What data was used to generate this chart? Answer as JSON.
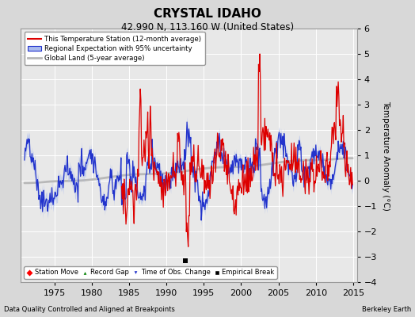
{
  "title": "CRYSTAL IDAHO",
  "subtitle": "42.990 N, 113.160 W (United States)",
  "ylabel": "Temperature Anomaly (°C)",
  "footer_left": "Data Quality Controlled and Aligned at Breakpoints",
  "footer_right": "Berkeley Earth",
  "xlim": [
    1970.5,
    2015.5
  ],
  "ylim": [
    -4,
    6
  ],
  "yticks": [
    -4,
    -3,
    -2,
    -1,
    0,
    1,
    2,
    3,
    4,
    5,
    6
  ],
  "xticks": [
    1975,
    1980,
    1985,
    1990,
    1995,
    2000,
    2005,
    2010,
    2015
  ],
  "bg_color": "#e8e8e8",
  "grid_color": "#ffffff",
  "red_color": "#dd0000",
  "blue_color": "#2233cc",
  "blue_band_color": "#aabbee",
  "gray_color": "#b8b8b8",
  "empirical_break_x": 1992.5,
  "empirical_break_y": -3.15,
  "fig_bg": "#d8d8d8"
}
